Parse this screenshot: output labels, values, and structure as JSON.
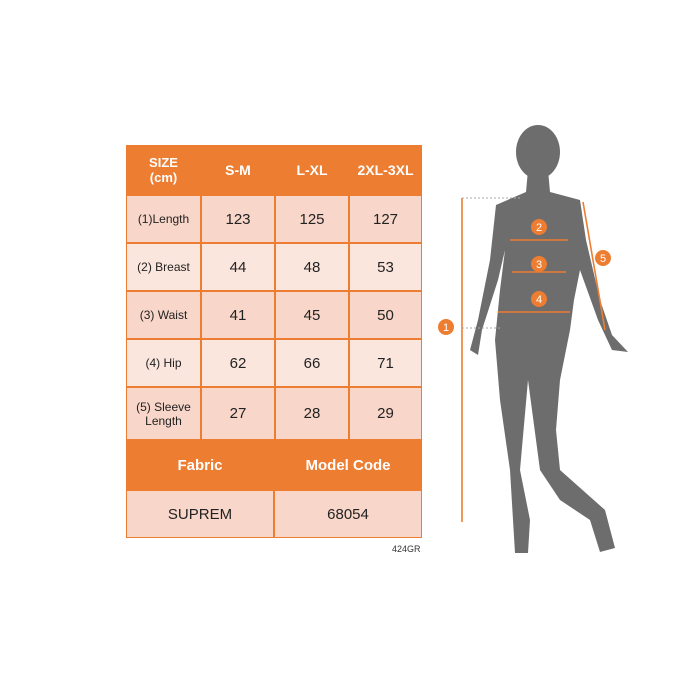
{
  "table": {
    "header": [
      "SIZE\n(cm)",
      "S-M",
      "L-XL",
      "2XL-3XL"
    ],
    "rows": [
      {
        "label": "(1)Length",
        "values": [
          "123",
          "125",
          "127"
        ]
      },
      {
        "label": "(2) Breast",
        "values": [
          "44",
          "48",
          "53"
        ]
      },
      {
        "label": "(3) Waist",
        "values": [
          "41",
          "45",
          "50"
        ]
      },
      {
        "label": "(4) Hip",
        "values": [
          "62",
          "66",
          "71"
        ]
      },
      {
        "label": "(5) Sleeve Length",
        "values": [
          "27",
          "28",
          "29"
        ]
      }
    ],
    "footer_header": [
      "Fabric",
      "Model Code"
    ],
    "footer_values": [
      "SUPREM",
      "68054"
    ]
  },
  "product_code": "424GR",
  "markers": [
    "1",
    "2",
    "3",
    "4",
    "5"
  ],
  "colors": {
    "accent": "#ed7d31",
    "row_dark": "#f8d6c9",
    "row_light": "#fbe6de",
    "silhouette": "#6d6d6d"
  }
}
